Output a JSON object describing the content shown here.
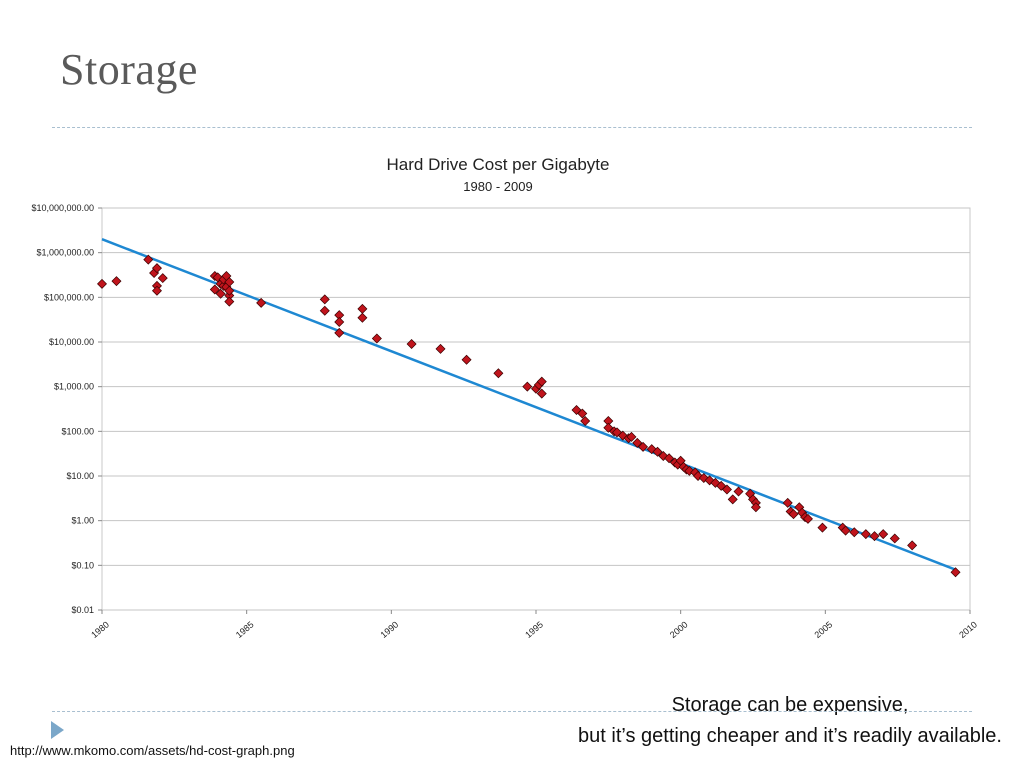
{
  "slide": {
    "title": "Storage",
    "caption_line1": "Storage can be expensive,",
    "caption_line2": "but it’s getting cheaper and it’s readily available.",
    "source_url": "http://www.mkomo.com/assets/hd-cost-graph.png"
  },
  "chart_data": {
    "type": "scatter",
    "title": "Hard Drive Cost per Gigabyte",
    "subtitle": "1980 - 2009",
    "xlabel": "",
    "ylabel": "",
    "xlim": [
      1980,
      2010
    ],
    "ylim": [
      0.01,
      10000000
    ],
    "yscale": "log",
    "x_ticks": [
      "1980",
      "1985",
      "1990",
      "1995",
      "2000",
      "2005",
      "2010"
    ],
    "y_ticks": [
      "$10,000,000.00",
      "$1,000,000.00",
      "$100,000.00",
      "$10,000.00",
      "$1,000.00",
      "$100.00",
      "$10.00",
      "$1.00",
      "$0.10",
      "$0.01"
    ],
    "grid": true,
    "legend": "none",
    "marker_color": "#c0141c",
    "trend_color": "#1e88d2",
    "trendline": {
      "x": [
        1980,
        2009.5
      ],
      "y": [
        2000000,
        0.08
      ]
    },
    "points": [
      [
        1980.0,
        200000
      ],
      [
        1980.5,
        230000
      ],
      [
        1981.6,
        700000
      ],
      [
        1981.8,
        350000
      ],
      [
        1981.9,
        450000
      ],
      [
        1981.9,
        180000
      ],
      [
        1981.9,
        140000
      ],
      [
        1982.1,
        270000
      ],
      [
        1983.9,
        300000
      ],
      [
        1983.9,
        150000
      ],
      [
        1984.0,
        280000
      ],
      [
        1984.1,
        200000
      ],
      [
        1984.1,
        120000
      ],
      [
        1984.2,
        180000
      ],
      [
        1984.2,
        250000
      ],
      [
        1984.3,
        300000
      ],
      [
        1984.3,
        170000
      ],
      [
        1984.4,
        110000
      ],
      [
        1984.4,
        80000
      ],
      [
        1984.4,
        140000
      ],
      [
        1984.4,
        220000
      ],
      [
        1985.5,
        75000
      ],
      [
        1987.7,
        90000
      ],
      [
        1987.7,
        50000
      ],
      [
        1988.2,
        40000
      ],
      [
        1988.2,
        28000
      ],
      [
        1988.2,
        16000
      ],
      [
        1989.0,
        55000
      ],
      [
        1989.0,
        35000
      ],
      [
        1989.5,
        12000
      ],
      [
        1990.7,
        9000
      ],
      [
        1991.7,
        7000
      ],
      [
        1992.6,
        4000
      ],
      [
        1993.7,
        2000
      ],
      [
        1994.7,
        1000
      ],
      [
        1995.0,
        900
      ],
      [
        1995.1,
        1100
      ],
      [
        1995.2,
        1300
      ],
      [
        1995.2,
        700
      ],
      [
        1996.4,
        300
      ],
      [
        1996.6,
        250
      ],
      [
        1996.7,
        170
      ],
      [
        1997.5,
        170
      ],
      [
        1997.5,
        120
      ],
      [
        1997.7,
        100
      ],
      [
        1997.8,
        95
      ],
      [
        1998.0,
        80
      ],
      [
        1998.2,
        70
      ],
      [
        1998.3,
        75
      ],
      [
        1998.5,
        55
      ],
      [
        1998.7,
        45
      ],
      [
        1999.0,
        40
      ],
      [
        1999.2,
        35
      ],
      [
        1999.4,
        28
      ],
      [
        1999.6,
        25
      ],
      [
        1999.8,
        20
      ],
      [
        1999.9,
        18
      ],
      [
        2000.0,
        22
      ],
      [
        2000.1,
        16
      ],
      [
        2000.2,
        14
      ],
      [
        2000.3,
        13
      ],
      [
        2000.5,
        12
      ],
      [
        2000.6,
        10
      ],
      [
        2000.8,
        9
      ],
      [
        2001.0,
        8
      ],
      [
        2001.2,
        7
      ],
      [
        2001.4,
        6
      ],
      [
        2001.6,
        5
      ],
      [
        2001.8,
        3
      ],
      [
        2002.0,
        4.5
      ],
      [
        2002.4,
        4
      ],
      [
        2002.5,
        3
      ],
      [
        2002.6,
        2.5
      ],
      [
        2002.6,
        2
      ],
      [
        2003.7,
        2.5
      ],
      [
        2003.8,
        1.6
      ],
      [
        2003.9,
        1.4
      ],
      [
        2004.1,
        2
      ],
      [
        2004.2,
        1.5
      ],
      [
        2004.3,
        1.2
      ],
      [
        2004.4,
        1.1
      ],
      [
        2004.9,
        0.7
      ],
      [
        2005.6,
        0.7
      ],
      [
        2005.7,
        0.6
      ],
      [
        2006.0,
        0.55
      ],
      [
        2006.4,
        0.5
      ],
      [
        2006.7,
        0.45
      ],
      [
        2007.0,
        0.5
      ],
      [
        2007.4,
        0.4
      ],
      [
        2008.0,
        0.28
      ],
      [
        2009.5,
        0.07
      ]
    ]
  }
}
